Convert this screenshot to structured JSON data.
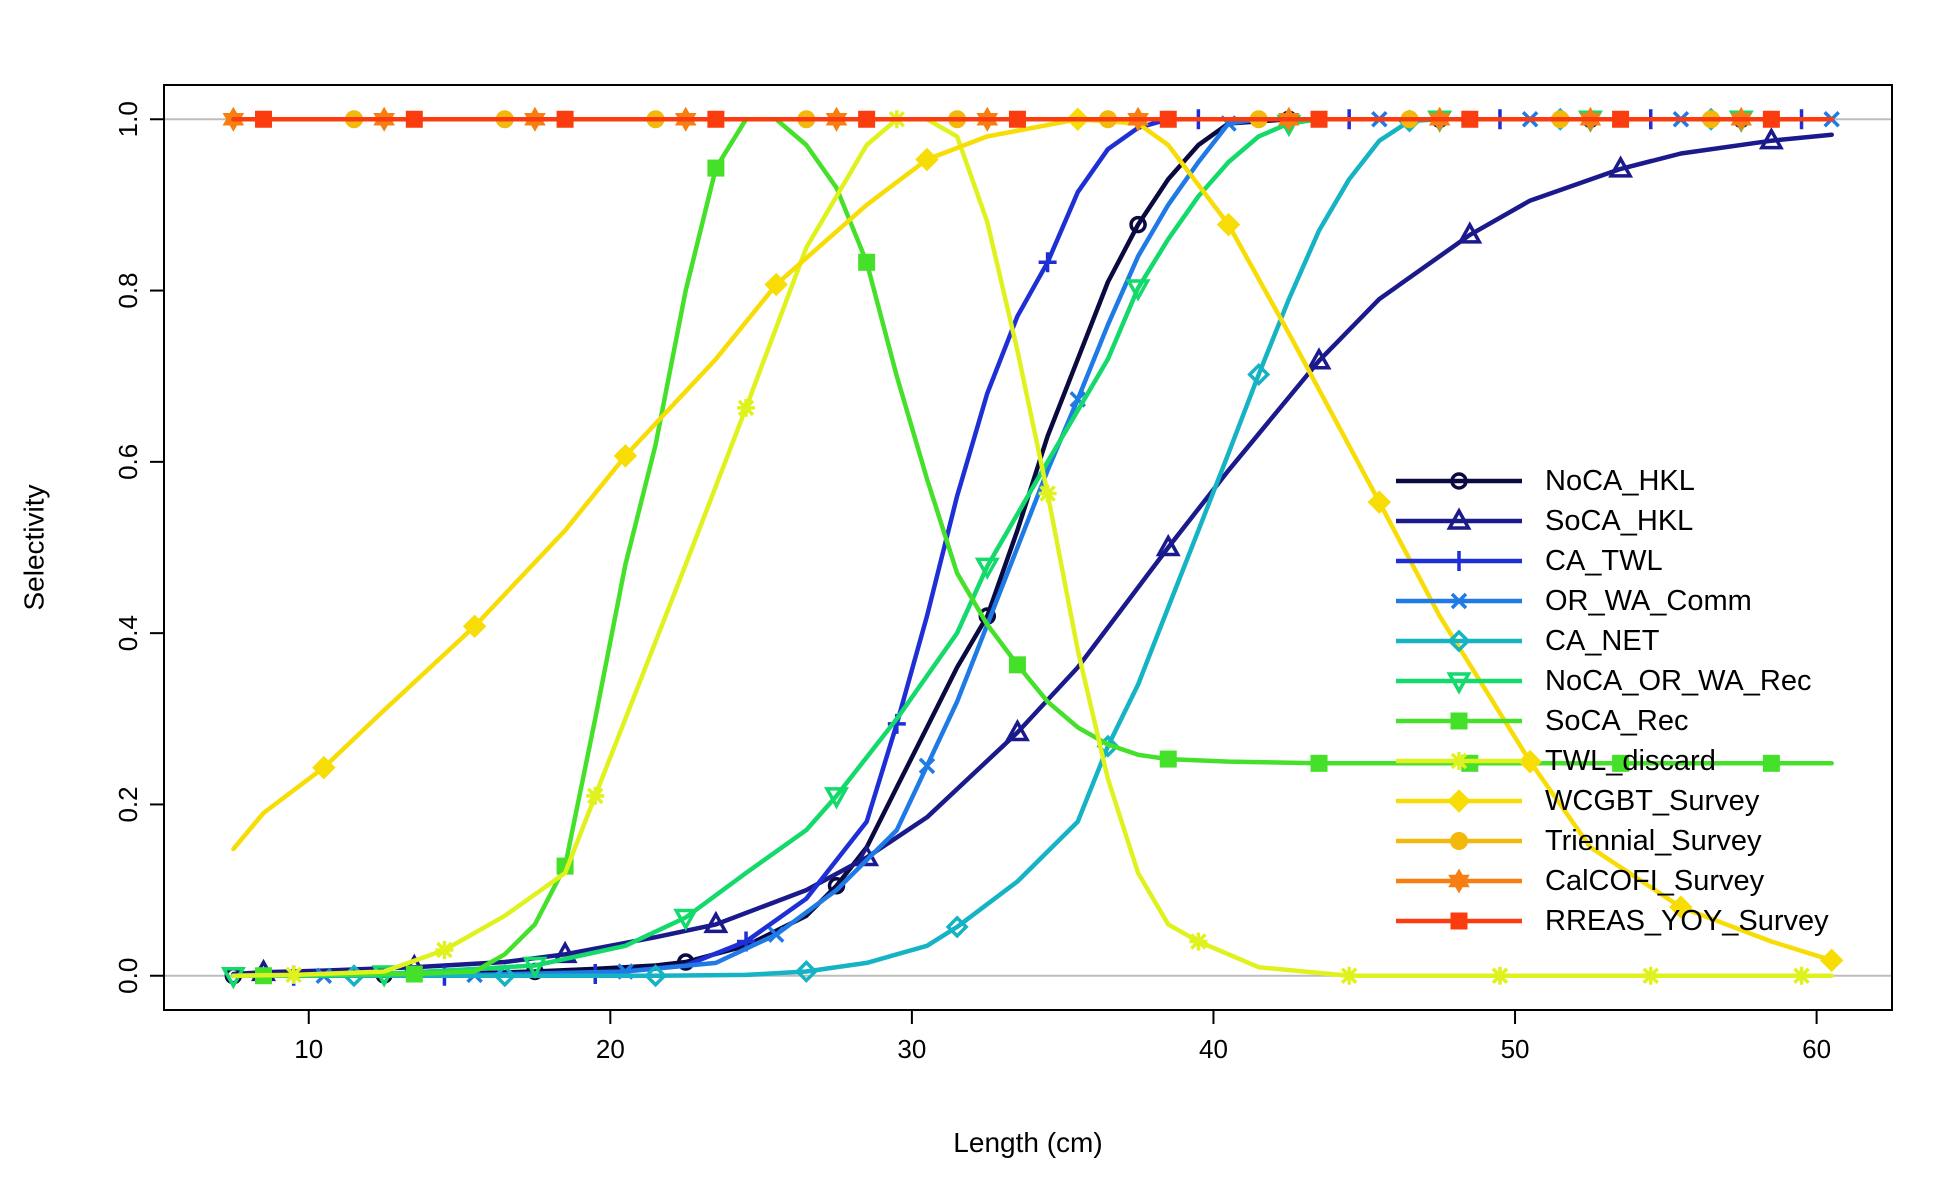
{
  "chart_data": {
    "type": "line",
    "title": "",
    "xlabel": "Length (cm)",
    "ylabel": "Selectivity",
    "xlim": [
      5.2,
      62.5
    ],
    "ylim": [
      -0.04,
      1.04
    ],
    "x_ticks": [
      10,
      20,
      30,
      40,
      50,
      60
    ],
    "y_ticks": [
      0.0,
      0.2,
      0.4,
      0.6,
      0.8,
      1.0
    ],
    "x_tick_labels": [
      "10",
      "20",
      "30",
      "40",
      "50",
      "60"
    ],
    "y_tick_labels": [
      "0.0",
      "0.2",
      "0.4",
      "0.6",
      "0.8",
      "1.0"
    ],
    "reference_lines": [
      0,
      1
    ],
    "legend_position": "bottom-right",
    "series": [
      {
        "name": "NoCA_HKL",
        "color": "#0a0a40",
        "marker": "circle",
        "points": [
          [
            7.5,
            0.0
          ],
          [
            9.5,
            0.0
          ],
          [
            12.5,
            0.001
          ],
          [
            15.5,
            0.003
          ],
          [
            17.5,
            0.005
          ],
          [
            19.5,
            0.008
          ],
          [
            21.5,
            0.012
          ],
          [
            22.5,
            0.016
          ],
          [
            24.5,
            0.035
          ],
          [
            26.5,
            0.07
          ],
          [
            27.5,
            0.105
          ],
          [
            28.5,
            0.15
          ],
          [
            29.5,
            0.22
          ],
          [
            30.5,
            0.29
          ],
          [
            31.5,
            0.36
          ],
          [
            32.5,
            0.42
          ],
          [
            33.5,
            0.52
          ],
          [
            34.5,
            0.63
          ],
          [
            35.5,
            0.72
          ],
          [
            36.5,
            0.81
          ],
          [
            37.5,
            0.877
          ],
          [
            38.5,
            0.93
          ],
          [
            39.5,
            0.97
          ],
          [
            40.5,
            0.995
          ],
          [
            42.5,
            1.0
          ],
          [
            47.5,
            1.0
          ],
          [
            52.5,
            1.0
          ],
          [
            57.5,
            1.0
          ],
          [
            60.5,
            1.0
          ]
        ],
        "marker_x": [
          7.5,
          12.5,
          17.5,
          22.5,
          27.5,
          32.5,
          37.5,
          42.5,
          47.5,
          52.5,
          57.5
        ]
      },
      {
        "name": "SoCA_HKL",
        "color": "#1a1a8c",
        "marker": "triangle-up",
        "points": [
          [
            7.5,
            0.002
          ],
          [
            8.5,
            0.004
          ],
          [
            10.5,
            0.006
          ],
          [
            13.5,
            0.01
          ],
          [
            16.5,
            0.016
          ],
          [
            18.5,
            0.025
          ],
          [
            21.5,
            0.045
          ],
          [
            23.5,
            0.06
          ],
          [
            26.5,
            0.1
          ],
          [
            28.5,
            0.138
          ],
          [
            30.5,
            0.185
          ],
          [
            33.5,
            0.284
          ],
          [
            35.5,
            0.36
          ],
          [
            38.5,
            0.5
          ],
          [
            40.5,
            0.59
          ],
          [
            43.5,
            0.718
          ],
          [
            45.5,
            0.79
          ],
          [
            48.5,
            0.865
          ],
          [
            50.5,
            0.905
          ],
          [
            53.5,
            0.942
          ],
          [
            55.5,
            0.96
          ],
          [
            58.5,
            0.975
          ],
          [
            60.5,
            0.982
          ]
        ],
        "marker_x": [
          8.5,
          13.5,
          18.5,
          23.5,
          28.5,
          33.5,
          38.5,
          43.5,
          48.5,
          53.5,
          58.5
        ]
      },
      {
        "name": "CA_TWL",
        "color": "#1f2fd6",
        "marker": "plus",
        "points": [
          [
            7.5,
            0.0
          ],
          [
            14.5,
            0.0
          ],
          [
            19.5,
            0.002
          ],
          [
            22.5,
            0.012
          ],
          [
            24.5,
            0.04
          ],
          [
            26.5,
            0.09
          ],
          [
            28.5,
            0.18
          ],
          [
            29.5,
            0.294
          ],
          [
            30.5,
            0.42
          ],
          [
            31.5,
            0.56
          ],
          [
            32.5,
            0.68
          ],
          [
            33.5,
            0.77
          ],
          [
            34.5,
            0.833
          ],
          [
            35.5,
            0.915
          ],
          [
            36.5,
            0.965
          ],
          [
            37.5,
            0.99
          ],
          [
            38.5,
            1.0
          ],
          [
            39.5,
            1.0
          ],
          [
            44.5,
            1.0
          ],
          [
            49.5,
            1.0
          ],
          [
            54.5,
            1.0
          ],
          [
            59.5,
            1.0
          ],
          [
            60.5,
            1.0
          ]
        ],
        "marker_x": [
          9.5,
          14.5,
          19.5,
          24.5,
          29.5,
          34.5,
          39.5,
          44.5,
          49.5,
          54.5,
          59.5
        ]
      },
      {
        "name": "OR_WA_Comm",
        "color": "#1f7ae6",
        "marker": "x",
        "points": [
          [
            7.5,
            0.0
          ],
          [
            10.5,
            0.0
          ],
          [
            15.5,
            0.001
          ],
          [
            20.5,
            0.005
          ],
          [
            23.5,
            0.015
          ],
          [
            25.5,
            0.048
          ],
          [
            27.5,
            0.1
          ],
          [
            29.5,
            0.17
          ],
          [
            30.5,
            0.245
          ],
          [
            31.5,
            0.32
          ],
          [
            32.5,
            0.41
          ],
          [
            33.5,
            0.5
          ],
          [
            34.5,
            0.59
          ],
          [
            35.5,
            0.673
          ],
          [
            36.5,
            0.76
          ],
          [
            37.5,
            0.84
          ],
          [
            38.5,
            0.9
          ],
          [
            39.5,
            0.95
          ],
          [
            40.5,
            0.995
          ],
          [
            41.5,
            1.0
          ],
          [
            45.5,
            1.0
          ],
          [
            50.5,
            1.0
          ],
          [
            55.5,
            1.0
          ],
          [
            60.5,
            1.0
          ]
        ],
        "marker_x": [
          10.5,
          15.5,
          20.5,
          25.5,
          30.5,
          35.5,
          40.5,
          45.5,
          50.5,
          55.5,
          60.5
        ]
      },
      {
        "name": "CA_NET",
        "color": "#15b3c3",
        "marker": "diamond",
        "points": [
          [
            7.5,
            0.0
          ],
          [
            11.5,
            0.0
          ],
          [
            16.5,
            0.0
          ],
          [
            21.5,
            0.0
          ],
          [
            24.5,
            0.001
          ],
          [
            26.5,
            0.005
          ],
          [
            28.5,
            0.015
          ],
          [
            30.5,
            0.035
          ],
          [
            31.5,
            0.057
          ],
          [
            33.5,
            0.11
          ],
          [
            35.5,
            0.18
          ],
          [
            36.5,
            0.268
          ],
          [
            37.5,
            0.34
          ],
          [
            38.5,
            0.43
          ],
          [
            39.5,
            0.52
          ],
          [
            40.5,
            0.61
          ],
          [
            41.5,
            0.702
          ],
          [
            42.5,
            0.79
          ],
          [
            43.5,
            0.87
          ],
          [
            44.5,
            0.93
          ],
          [
            45.5,
            0.975
          ],
          [
            46.5,
            0.998
          ],
          [
            47.5,
            1.0
          ],
          [
            51.5,
            1.0
          ],
          [
            56.5,
            1.0
          ],
          [
            60.5,
            1.0
          ]
        ],
        "marker_x": [
          11.5,
          16.5,
          21.5,
          26.5,
          31.5,
          36.5,
          41.5,
          46.5,
          51.5,
          56.5
        ]
      },
      {
        "name": "NoCA_OR_WA_Rec",
        "color": "#14d96b",
        "marker": "triangle-down",
        "points": [
          [
            7.5,
            0.0
          ],
          [
            12.5,
            0.002
          ],
          [
            17.5,
            0.012
          ],
          [
            20.5,
            0.035
          ],
          [
            22.5,
            0.068
          ],
          [
            24.5,
            0.12
          ],
          [
            26.5,
            0.17
          ],
          [
            27.5,
            0.21
          ],
          [
            29.5,
            0.3
          ],
          [
            31.5,
            0.4
          ],
          [
            32.5,
            0.478
          ],
          [
            34.5,
            0.6
          ],
          [
            36.5,
            0.72
          ],
          [
            37.5,
            0.803
          ],
          [
            38.5,
            0.86
          ],
          [
            39.5,
            0.91
          ],
          [
            40.5,
            0.95
          ],
          [
            41.5,
            0.98
          ],
          [
            42.5,
            0.995
          ],
          [
            43.5,
            1.0
          ],
          [
            47.5,
            1.0
          ],
          [
            52.5,
            1.0
          ],
          [
            57.5,
            1.0
          ],
          [
            60.5,
            1.0
          ]
        ],
        "marker_x": [
          7.5,
          12.5,
          17.5,
          22.5,
          27.5,
          32.5,
          37.5,
          42.5,
          47.5,
          52.5,
          57.5
        ]
      },
      {
        "name": "SoCA_Rec",
        "color": "#45e02a",
        "marker": "square",
        "points": [
          [
            7.5,
            0.0
          ],
          [
            8.5,
            0.0
          ],
          [
            13.5,
            0.002
          ],
          [
            15.5,
            0.005
          ],
          [
            16.5,
            0.025
          ],
          [
            17.5,
            0.06
          ],
          [
            18.5,
            0.128
          ],
          [
            19.5,
            0.3
          ],
          [
            20.5,
            0.48
          ],
          [
            21.5,
            0.62
          ],
          [
            22.5,
            0.8
          ],
          [
            23.5,
            0.943
          ],
          [
            24.5,
            1.0
          ],
          [
            25.5,
            1.0
          ],
          [
            26.5,
            0.97
          ],
          [
            27.5,
            0.92
          ],
          [
            28.5,
            0.833
          ],
          [
            29.5,
            0.7
          ],
          [
            30.5,
            0.58
          ],
          [
            31.5,
            0.47
          ],
          [
            32.5,
            0.41
          ],
          [
            33.5,
            0.363
          ],
          [
            34.5,
            0.32
          ],
          [
            35.5,
            0.29
          ],
          [
            36.5,
            0.27
          ],
          [
            37.5,
            0.258
          ],
          [
            38.5,
            0.253
          ],
          [
            40.5,
            0.25
          ],
          [
            43.5,
            0.248
          ],
          [
            48.5,
            0.248
          ],
          [
            53.5,
            0.248
          ],
          [
            58.5,
            0.248
          ],
          [
            60.5,
            0.248
          ]
        ],
        "marker_x": [
          8.5,
          13.5,
          18.5,
          23.5,
          28.5,
          33.5,
          38.5,
          43.5,
          48.5,
          53.5,
          58.5
        ]
      },
      {
        "name": "TWL_discard",
        "color": "#e0f21e",
        "marker": "asterisk",
        "points": [
          [
            7.5,
            0.0
          ],
          [
            9.5,
            0.001
          ],
          [
            12.5,
            0.005
          ],
          [
            14.5,
            0.03
          ],
          [
            16.5,
            0.07
          ],
          [
            18.5,
            0.12
          ],
          [
            19.5,
            0.21
          ],
          [
            20.5,
            0.3
          ],
          [
            22.5,
            0.48
          ],
          [
            24.5,
            0.663
          ],
          [
            26.5,
            0.85
          ],
          [
            28.5,
            0.97
          ],
          [
            29.5,
            1.0
          ],
          [
            30.5,
            1.0
          ],
          [
            31.5,
            0.98
          ],
          [
            32.5,
            0.88
          ],
          [
            33.5,
            0.73
          ],
          [
            34.5,
            0.563
          ],
          [
            35.5,
            0.38
          ],
          [
            36.5,
            0.23
          ],
          [
            37.5,
            0.12
          ],
          [
            38.5,
            0.06
          ],
          [
            39.5,
            0.04
          ],
          [
            41.5,
            0.01
          ],
          [
            44.5,
            0.0
          ],
          [
            49.5,
            0.0
          ],
          [
            54.5,
            0.0
          ],
          [
            59.5,
            0.0
          ],
          [
            60.5,
            0.0
          ]
        ],
        "marker_x": [
          9.5,
          14.5,
          19.5,
          24.5,
          29.5,
          34.5,
          39.5,
          44.5,
          49.5,
          54.5,
          59.5
        ]
      },
      {
        "name": "WCGBT_Survey",
        "color": "#f7dd05",
        "marker": "diamond-filled",
        "points": [
          [
            7.5,
            0.148
          ],
          [
            8.5,
            0.19
          ],
          [
            10.5,
            0.243
          ],
          [
            12.5,
            0.31
          ],
          [
            15.5,
            0.408
          ],
          [
            18.5,
            0.52
          ],
          [
            20.5,
            0.607
          ],
          [
            23.5,
            0.72
          ],
          [
            25.5,
            0.807
          ],
          [
            28.5,
            0.9
          ],
          [
            30.5,
            0.953
          ],
          [
            32.5,
            0.98
          ],
          [
            35.5,
            1.0
          ],
          [
            37.5,
            0.995
          ],
          [
            38.5,
            0.97
          ],
          [
            40.5,
            0.877
          ],
          [
            42.5,
            0.75
          ],
          [
            45.5,
            0.553
          ],
          [
            47.5,
            0.42
          ],
          [
            50.5,
            0.25
          ],
          [
            52.5,
            0.15
          ],
          [
            55.5,
            0.08
          ],
          [
            58.5,
            0.04
          ],
          [
            60.5,
            0.018
          ]
        ],
        "marker_x": [
          10.5,
          15.5,
          20.5,
          25.5,
          30.5,
          35.5,
          40.5,
          45.5,
          50.5,
          55.5,
          60.5
        ]
      },
      {
        "name": "Triennial_Survey",
        "color": "#f2b90c",
        "marker": "circle-filled",
        "points": [
          [
            7.5,
            1.0
          ],
          [
            60.5,
            1.0
          ]
        ],
        "marker_x": [
          11.5,
          16.5,
          21.5,
          26.5,
          31.5,
          36.5,
          41.5,
          46.5,
          51.5,
          56.5
        ]
      },
      {
        "name": "CalCOFI_Survey",
        "color": "#f77f12",
        "marker": "star",
        "points": [
          [
            7.5,
            1.0
          ],
          [
            60.5,
            1.0
          ]
        ],
        "marker_x": [
          7.5,
          12.5,
          17.5,
          22.5,
          27.5,
          32.5,
          37.5,
          42.5,
          47.5,
          52.5,
          57.5
        ]
      },
      {
        "name": "RREAS_YOY_Survey",
        "color": "#fa3c0f",
        "marker": "square-filled",
        "points": [
          [
            7.5,
            1.0
          ],
          [
            60.5,
            1.0
          ]
        ],
        "marker_x": [
          8.5,
          13.5,
          18.5,
          23.5,
          28.5,
          33.5,
          38.5,
          43.5,
          48.5,
          53.5,
          58.5
        ]
      }
    ]
  }
}
